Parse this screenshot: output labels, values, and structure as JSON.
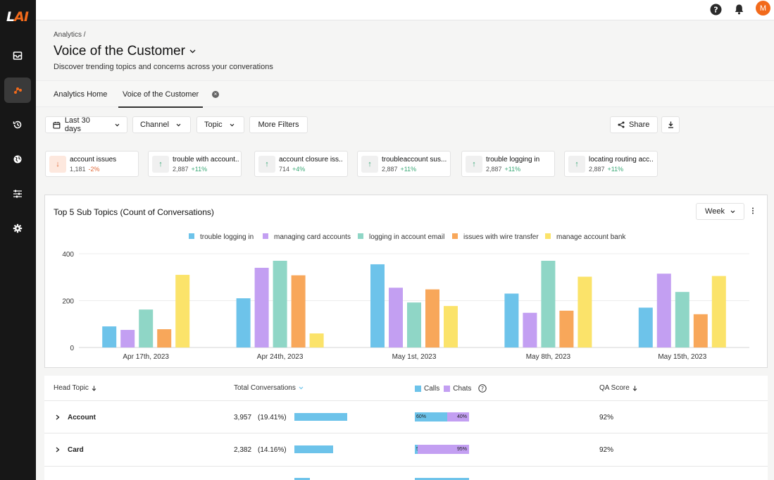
{
  "app": {
    "logo_main": "L",
    "logo_accent": "AI"
  },
  "sidebar": {
    "items": [
      {
        "name": "inbox-icon"
      },
      {
        "name": "analytics-icon"
      },
      {
        "name": "history-icon"
      },
      {
        "name": "globe-icon"
      },
      {
        "name": "sliders-icon"
      },
      {
        "name": "gear-icon"
      }
    ]
  },
  "topbar": {
    "avatar_initial": "M"
  },
  "header": {
    "breadcrumb": "Analytics /",
    "title": "Voice of the Customer",
    "subtitle": "Discover trending topics and concerns across your converations"
  },
  "tabs": [
    {
      "label": "Analytics Home"
    },
    {
      "label": "Voice of the Customer"
    }
  ],
  "filters": {
    "date": "Last 30 days",
    "channel": "Channel",
    "topic": "Topic",
    "more": "More Filters",
    "share": "Share"
  },
  "topics": [
    {
      "name": "account issues",
      "count": "1,181",
      "change": "-2%",
      "dir": "down"
    },
    {
      "name": "trouble with account..",
      "count": "2,887",
      "change": "+11%",
      "dir": "up"
    },
    {
      "name": "account closure iss..",
      "count": "714",
      "change": "+4%",
      "dir": "up"
    },
    {
      "name": "troubleaccount sus...",
      "count": "2,887",
      "change": "+11%",
      "dir": "up"
    },
    {
      "name": "trouble logging in",
      "count": "2,887",
      "change": "+11%",
      "dir": "up"
    },
    {
      "name": "locating routing acc..",
      "count": "2,887",
      "change": "+11%",
      "dir": "up"
    }
  ],
  "chart_data": {
    "type": "bar",
    "title": "Top 5 Sub Topics (Count of Conversations)",
    "period_select": "Week",
    "categories": [
      "Apr 17th, 2023",
      "Apr 24th, 2023",
      "May 1st, 2023",
      "May 8th, 2023",
      "May 15th, 2023"
    ],
    "ylim": [
      0,
      400
    ],
    "yticks": [
      0,
      200,
      400
    ],
    "grid": true,
    "legend": "top",
    "series": [
      {
        "name": "trouble logging in",
        "color": "#6dc3ea",
        "values": [
          90,
          210,
          355,
          230,
          170
        ]
      },
      {
        "name": "managing card accounts",
        "color": "#c39ff2",
        "values": [
          75,
          340,
          255,
          148,
          315
        ]
      },
      {
        "name": "logging in account email",
        "color": "#8fd6c6",
        "values": [
          162,
          370,
          192,
          370,
          237
        ]
      },
      {
        "name": "issues with wire transfer",
        "color": "#f8a75a",
        "values": [
          78,
          308,
          248,
          157,
          142
        ]
      },
      {
        "name": "manage account bank",
        "color": "#fbe36a",
        "values": [
          310,
          60,
          177,
          302,
          305
        ]
      }
    ]
  },
  "table": {
    "headers": {
      "head_topic": "Head Topic",
      "total": "Total Conversations",
      "calls": "Calls",
      "chats": "Chats",
      "qa": "QA Score"
    },
    "rows": [
      {
        "topic": "Account",
        "total": "3,957",
        "pct": "(19.41%)",
        "bar_fraction": 0.194,
        "calls": "60%",
        "chats": "40%",
        "calls_fraction": 0.6,
        "qa": "92%"
      },
      {
        "topic": "Card",
        "total": "2,382",
        "pct": "(14.16%)",
        "bar_fraction": 0.142,
        "calls": "5%",
        "chats": "95%",
        "calls_fraction": 0.05,
        "qa": "92%"
      }
    ]
  }
}
